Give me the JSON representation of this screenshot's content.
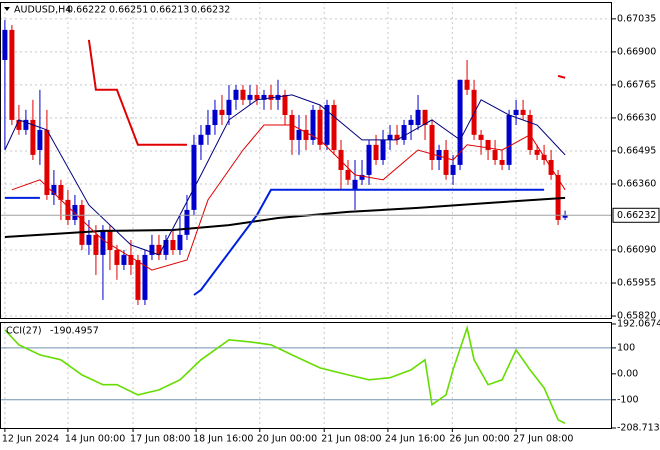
{
  "chart_data": [
    {
      "type": "candlestick",
      "symbol": "AUDUSD,H4",
      "up_color": "#0000cc",
      "down_color": "#e00000",
      "grid": true,
      "open": [
        0.66867,
        0.6699,
        0.66622,
        0.66581,
        0.66622,
        0.66499,
        0.66581,
        0.66315,
        0.66356,
        0.66295,
        0.66213,
        0.66274,
        0.66111,
        0.66152,
        0.6607,
        0.66172,
        0.6609,
        0.66029,
        0.6607,
        0.66049,
        0.65886,
        0.6607,
        0.66111,
        0.6607,
        0.66131,
        0.6609,
        0.66152,
        0.66254,
        0.6652,
        0.66561,
        0.66601,
        0.66663,
        0.66642,
        0.66704,
        0.66745,
        0.66704,
        0.66724,
        0.66704,
        0.66724,
        0.66704,
        0.66724,
        0.66642,
        0.6654,
        0.66581,
        0.6654,
        0.66663,
        0.6652,
        0.66683,
        0.66499,
        0.66417,
        0.66336,
        0.66377,
        0.66397,
        0.6652,
        0.66458,
        0.6654,
        0.66561,
        0.6654,
        0.66601,
        0.66601,
        0.66663,
        0.66601,
        0.66458,
        0.66499,
        0.66397,
        0.66438,
        0.66786,
        0.66745,
        0.66561,
        0.6654,
        0.66499,
        0.66458,
        0.66438,
        0.66642,
        0.66663,
        0.66642,
        0.66499,
        0.66479,
        0.66458,
        0.66397,
        0.66222
      ],
      "high": [
        0.67031,
        0.6701,
        0.66683,
        0.66663,
        0.66704,
        0.66745,
        0.66663,
        0.66417,
        0.66377,
        0.66336,
        0.66315,
        0.66295,
        0.66213,
        0.66192,
        0.66192,
        0.66192,
        0.66111,
        0.6609,
        0.66131,
        0.6607,
        0.6609,
        0.66152,
        0.66152,
        0.66152,
        0.66172,
        0.66233,
        0.66315,
        0.66561,
        0.66601,
        0.66663,
        0.66704,
        0.66724,
        0.66765,
        0.66765,
        0.66765,
        0.66765,
        0.66765,
        0.66745,
        0.66765,
        0.66786,
        0.66745,
        0.66663,
        0.66642,
        0.66642,
        0.66683,
        0.66683,
        0.66704,
        0.66704,
        0.6654,
        0.66458,
        0.66458,
        0.66458,
        0.6654,
        0.66561,
        0.66581,
        0.66601,
        0.66601,
        0.66622,
        0.66642,
        0.66724,
        0.66663,
        0.66622,
        0.6652,
        0.6654,
        0.66479,
        0.66786,
        0.66867,
        0.66786,
        0.66581,
        0.6654,
        0.6654,
        0.66499,
        0.66663,
        0.66704,
        0.66704,
        0.66663,
        0.6652,
        0.6652,
        0.66499,
        0.66417,
        0.66251
      ],
      "low": [
        0.66499,
        0.66601,
        0.66561,
        0.66561,
        0.66458,
        0.66438,
        0.66295,
        0.66274,
        0.66213,
        0.66192,
        0.66192,
        0.6609,
        0.6607,
        0.65988,
        0.65886,
        0.66008,
        0.65968,
        0.66008,
        0.65988,
        0.65865,
        0.65865,
        0.66049,
        0.66049,
        0.66049,
        0.6607,
        0.6607,
        0.66131,
        0.66233,
        0.66458,
        0.6652,
        0.66561,
        0.66601,
        0.66601,
        0.66663,
        0.66683,
        0.66683,
        0.66683,
        0.66663,
        0.66663,
        0.66663,
        0.66601,
        0.66479,
        0.66479,
        0.66499,
        0.6652,
        0.66499,
        0.66499,
        0.66479,
        0.66336,
        0.66356,
        0.66254,
        0.66356,
        0.66356,
        0.66438,
        0.66438,
        0.66499,
        0.6652,
        0.6652,
        0.6654,
        0.66581,
        0.6654,
        0.66417,
        0.66417,
        0.66377,
        0.66356,
        0.66417,
        0.66724,
        0.6654,
        0.66479,
        0.66458,
        0.66438,
        0.66417,
        0.66417,
        0.66601,
        0.66622,
        0.66479,
        0.66458,
        0.66438,
        0.66377,
        0.66192,
        0.66213
      ],
      "close": [
        0.6699,
        0.66622,
        0.66581,
        0.66622,
        0.66479,
        0.66581,
        0.66315,
        0.66356,
        0.66295,
        0.66213,
        0.66274,
        0.66111,
        0.66152,
        0.6607,
        0.66172,
        0.6609,
        0.66029,
        0.6607,
        0.66029,
        0.65886,
        0.6607,
        0.66111,
        0.6607,
        0.66131,
        0.6609,
        0.66152,
        0.66254,
        0.6652,
        0.66561,
        0.66601,
        0.66663,
        0.66642,
        0.66704,
        0.66745,
        0.66704,
        0.66724,
        0.66704,
        0.66724,
        0.66704,
        0.66724,
        0.66642,
        0.6654,
        0.66581,
        0.6654,
        0.66663,
        0.6652,
        0.66683,
        0.66499,
        0.66417,
        0.66377,
        0.66377,
        0.66397,
        0.6652,
        0.66458,
        0.6654,
        0.66561,
        0.6654,
        0.66601,
        0.66622,
        0.66663,
        0.66601,
        0.66458,
        0.66499,
        0.66397,
        0.66438,
        0.66786,
        0.66745,
        0.66561,
        0.6654,
        0.66499,
        0.66458,
        0.66438,
        0.66642,
        0.66663,
        0.66642,
        0.66499,
        0.66479,
        0.66458,
        0.66397,
        0.66213,
        0.66232
      ],
      "lines": [
        {
          "color": "#000000",
          "width": 2,
          "x": [
            0,
            14,
            24,
            32,
            39,
            49,
            59,
            69,
            80
          ],
          "values": [
            0.66143,
            0.66168,
            0.66172,
            0.66192,
            0.66221,
            0.66246,
            0.66262,
            0.66282,
            0.66303
          ]
        },
        {
          "color": "#000080",
          "width": 1,
          "x": [
            0,
            2,
            6,
            12,
            18,
            22,
            28,
            32,
            36,
            41,
            45,
            51,
            56,
            61,
            65,
            68,
            72,
            76,
            80
          ],
          "values": [
            0.66499,
            0.66622,
            0.66581,
            0.66274,
            0.66111,
            0.6607,
            0.66397,
            0.66622,
            0.66704,
            0.66724,
            0.66683,
            0.6654,
            0.6654,
            0.66622,
            0.6654,
            0.66704,
            0.66642,
            0.66601,
            0.66479
          ]
        },
        {
          "color": "#e00000",
          "width": 1,
          "x": [
            1,
            5,
            8,
            14,
            21,
            26,
            29,
            34,
            37,
            41,
            45,
            50,
            54,
            59,
            64,
            66,
            71,
            75,
            80
          ],
          "values": [
            0.66336,
            0.66377,
            0.66295,
            0.66131,
            0.66008,
            0.66049,
            0.66295,
            0.66499,
            0.66601,
            0.66601,
            0.6654,
            0.66397,
            0.66377,
            0.66499,
            0.66458,
            0.6652,
            0.66499,
            0.66561,
            0.66336
          ]
        },
        {
          "color": "#e00000",
          "width": 2,
          "x": [
            12,
            13,
            16,
            19,
            26,
            27,
            79,
            80
          ],
          "values": [
            0.66949,
            0.66745,
            0.66745,
            0.6652,
            0.6652,
            null,
            0.66802,
            0.66794
          ]
        },
        {
          "color": "#0020e0",
          "width": 2,
          "x": [
            0,
            5,
            6,
            27,
            28,
            36,
            38,
            77
          ],
          "values": [
            0.66303,
            0.66303,
            null,
            0.65906,
            0.65927,
            0.66233,
            0.66336,
            0.66336
          ]
        }
      ],
      "xlim": [
        -0.7,
        86.7
      ],
      "ylim": [
        0.65812,
        0.67104
      ],
      "yticks": [
        0.67035,
        {
          "value": 0.669,
          "label": "0.66900"
        },
        0.66765,
        {
          "value": 0.6663,
          "label": "0.66630"
        },
        0.66495,
        {
          "value": 0.6636,
          "label": "0.66360"
        },
        {
          "value": 0.6609,
          "label": "0.66090"
        },
        0.65955,
        {
          "value": 0.6582,
          "label": "0.65820"
        }
      ],
      "xticks": [
        {
          "value": 0,
          "label": "12 Jun 2024"
        },
        {
          "value": 9,
          "label": "14 Jun 00:00"
        },
        {
          "value": 18.3,
          "label": "17 Jun 08:00"
        },
        {
          "value": 27.3,
          "label": "18 Jun 16:00"
        },
        {
          "value": 36.4,
          "label": "20 Jun 00:00"
        },
        {
          "value": 45.6,
          "label": "21 Jun 08:00"
        },
        {
          "value": 54.7,
          "label": "24 Jun 16:00"
        },
        {
          "value": 63.9,
          "label": "26 Jun 00:00"
        },
        {
          "value": 73,
          "label": "27 Jun 08:00"
        }
      ]
    },
    {
      "type": "line",
      "title": "CCI(27)",
      "color": "#66dd00",
      "x": [
        0,
        2,
        5,
        8,
        11,
        14,
        16,
        19,
        22,
        25,
        28,
        32,
        35,
        38,
        41,
        45,
        49,
        52,
        55,
        58,
        60,
        61,
        63,
        64,
        66,
        67,
        69,
        71,
        73,
        75,
        77,
        79,
        80
      ],
      "values": [
        169,
        112,
        73,
        54,
        -4,
        -42,
        -42,
        -81,
        -62,
        -23,
        54,
        131,
        123,
        112,
        73,
        23,
        -4,
        -23,
        -15,
        15,
        54,
        -119,
        -81,
        15,
        177,
        54,
        -42,
        -23,
        92,
        15,
        -54,
        -177,
        -190.4957
      ],
      "xlim": [
        -0.7,
        86.7
      ],
      "ylim": [
        -208.713,
        192.0674
      ],
      "yticks": [
        192.0674,
        100,
        {
          "value": 0,
          "label": "0.00"
        },
        -100,
        -208.713
      ],
      "levels": [
        100,
        -100
      ]
    }
  ]
}
